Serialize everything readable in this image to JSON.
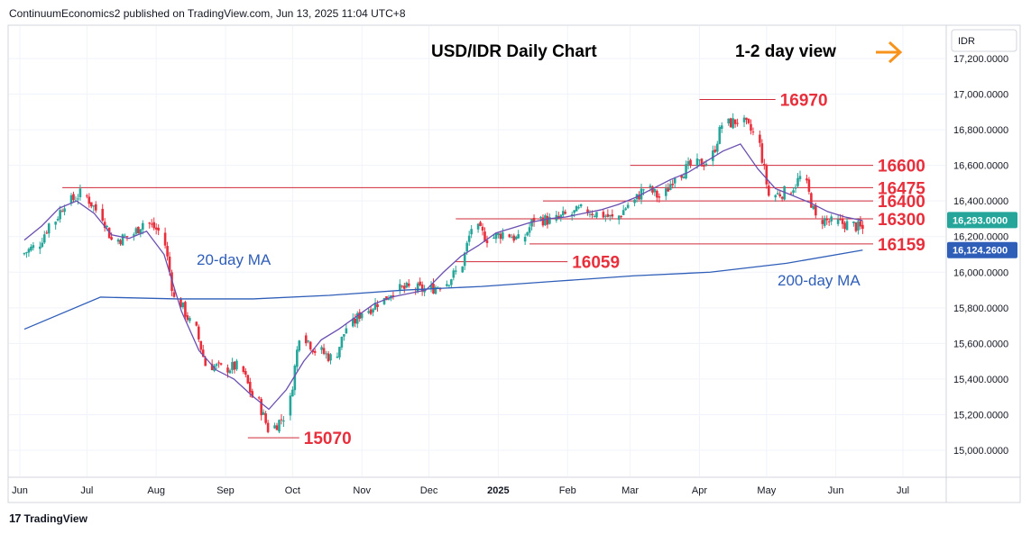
{
  "header": {
    "publisher": "ContinuumEconomics2 published on TradingView.com, Jun 13, 2025 11:04 UTC+8"
  },
  "footer": {
    "brand": "TradingView",
    "logo_icon": "tradingview-logo-icon"
  },
  "chart_data": {
    "type": "candlestick",
    "title": "USD/IDR Daily Chart",
    "subtitle": "1-2 day view",
    "currency_label": "IDR",
    "arrow_icon": "arrow-right-icon",
    "arrow_color": "#f7931a",
    "up_color": "#26a69a",
    "down_color": "#e8303d",
    "level_color": "#e8303d",
    "ma_color": "#2f5eb8",
    "ylim": [
      14850,
      17300
    ],
    "y_ticks": [
      "17,200.0000",
      "17,000.0000",
      "16,800.0000",
      "16,600.0000",
      "16,400.0000",
      "16,200.0000",
      "16,000.0000",
      "15,800.0000",
      "15,600.0000",
      "15,400.0000",
      "15,200.0000",
      "15,000.0000"
    ],
    "y_tick_values": [
      17200,
      17000,
      16800,
      16600,
      16400,
      16200,
      16000,
      15800,
      15600,
      15400,
      15200,
      15000
    ],
    "x_ticks": [
      "Jun",
      "Jul",
      "Aug",
      "Sep",
      "Oct",
      "Nov",
      "Dec",
      "2025",
      "Feb",
      "Mar",
      "Apr",
      "May",
      "Jun",
      "Jul"
    ],
    "x_tick_dates": [
      "2024-06-01",
      "2024-07-01",
      "2024-08-01",
      "2024-09-01",
      "2024-10-01",
      "2024-11-01",
      "2024-12-01",
      "2025-01-01",
      "2025-02-01",
      "2025-03-01",
      "2025-04-01",
      "2025-05-01",
      "2025-06-01",
      "2025-07-01"
    ],
    "price_badges": [
      {
        "label": "16,293.0000",
        "value": 16293,
        "color": "#26a69a"
      },
      {
        "label": "16,124.2600",
        "value": 16124.26,
        "color": "#2f5eb8"
      }
    ],
    "levels": [
      {
        "label": "16970",
        "value": 16970,
        "from": "2025-04-01",
        "to": "2025-05-05"
      },
      {
        "label": "16600",
        "value": 16600,
        "from": "2025-03-01",
        "to": "2025-06-18"
      },
      {
        "label": "16475",
        "value": 16475,
        "from": "2024-06-20",
        "to": "2025-06-18"
      },
      {
        "label": "16400",
        "value": 16400,
        "from": "2025-01-21",
        "to": "2025-06-18"
      },
      {
        "label": "16300",
        "value": 16300,
        "from": "2024-12-13",
        "to": "2025-06-18"
      },
      {
        "label": "16159",
        "value": 16159,
        "from": "2025-01-15",
        "to": "2025-06-18"
      },
      {
        "label": "16059",
        "value": 16059,
        "from": "2024-12-13",
        "to": "2025-02-01"
      },
      {
        "label": "15070",
        "value": 15070,
        "from": "2024-09-11",
        "to": "2024-10-04"
      }
    ],
    "ma_labels": [
      "20-day MA",
      "200-day MA"
    ],
    "ohlc": {
      "start_date": "2024-06-03",
      "dates": [
        "2024-06-03",
        "2024-06-10",
        "2024-06-17",
        "2024-06-24",
        "2024-07-01",
        "2024-07-08",
        "2024-07-15",
        "2024-07-22",
        "2024-07-29",
        "2024-08-05",
        "2024-08-12",
        "2024-08-19",
        "2024-08-26",
        "2024-09-02",
        "2024-09-09",
        "2024-09-16",
        "2024-09-23",
        "2024-09-30",
        "2024-10-07",
        "2024-10-14",
        "2024-10-21",
        "2024-10-28",
        "2024-11-04",
        "2024-11-11",
        "2024-11-18",
        "2024-11-25",
        "2024-12-02",
        "2024-12-09",
        "2024-12-16",
        "2024-12-23",
        "2024-12-30",
        "2025-01-06",
        "2025-01-13",
        "2025-01-20",
        "2025-01-27",
        "2025-02-03",
        "2025-02-10",
        "2025-02-17",
        "2025-02-24",
        "2025-03-03",
        "2025-03-10",
        "2025-03-17",
        "2025-03-24",
        "2025-03-31",
        "2025-04-07",
        "2025-04-14",
        "2025-04-21",
        "2025-04-28",
        "2025-05-05",
        "2025-05-12",
        "2025-05-19",
        "2025-05-26",
        "2025-06-02",
        "2025-06-09",
        "2025-06-13"
      ],
      "close": [
        16140,
        16270,
        16390,
        16440,
        16350,
        16180,
        16200,
        16280,
        16230,
        15850,
        15720,
        15480,
        15460,
        15470,
        15300,
        15120,
        15190,
        15650,
        15560,
        15520,
        15690,
        15780,
        15830,
        15900,
        15910,
        15900,
        15930,
        16000,
        16250,
        16190,
        16220,
        16180,
        16300,
        16290,
        16320,
        16350,
        16330,
        16300,
        16380,
        16470,
        16420,
        16550,
        16600,
        16620,
        16830,
        16850,
        16780,
        16430,
        16450,
        16530,
        16300,
        16280,
        16270,
        16240,
        16293
      ]
    },
    "ma20": [
      16180,
      16260,
      16360,
      16400,
      16330,
      16210,
      16190,
      16230,
      16100,
      15780,
      15560,
      15450,
      15400,
      15310,
      15230,
      15340,
      15500,
      15620,
      15680,
      15750,
      15820,
      15860,
      15880,
      15900,
      16000,
      16090,
      16150,
      16220,
      16250,
      16280,
      16300,
      16310,
      16330,
      16350,
      16380,
      16420,
      16470,
      16520,
      16560,
      16620,
      16680,
      16720,
      16580,
      16470,
      16430,
      16390,
      16340,
      16310,
      16290
    ],
    "ma200": [
      15680,
      15860,
      15850,
      15850,
      15870,
      15900,
      15920,
      15950,
      15980,
      16000,
      16050,
      16124.26
    ]
  }
}
